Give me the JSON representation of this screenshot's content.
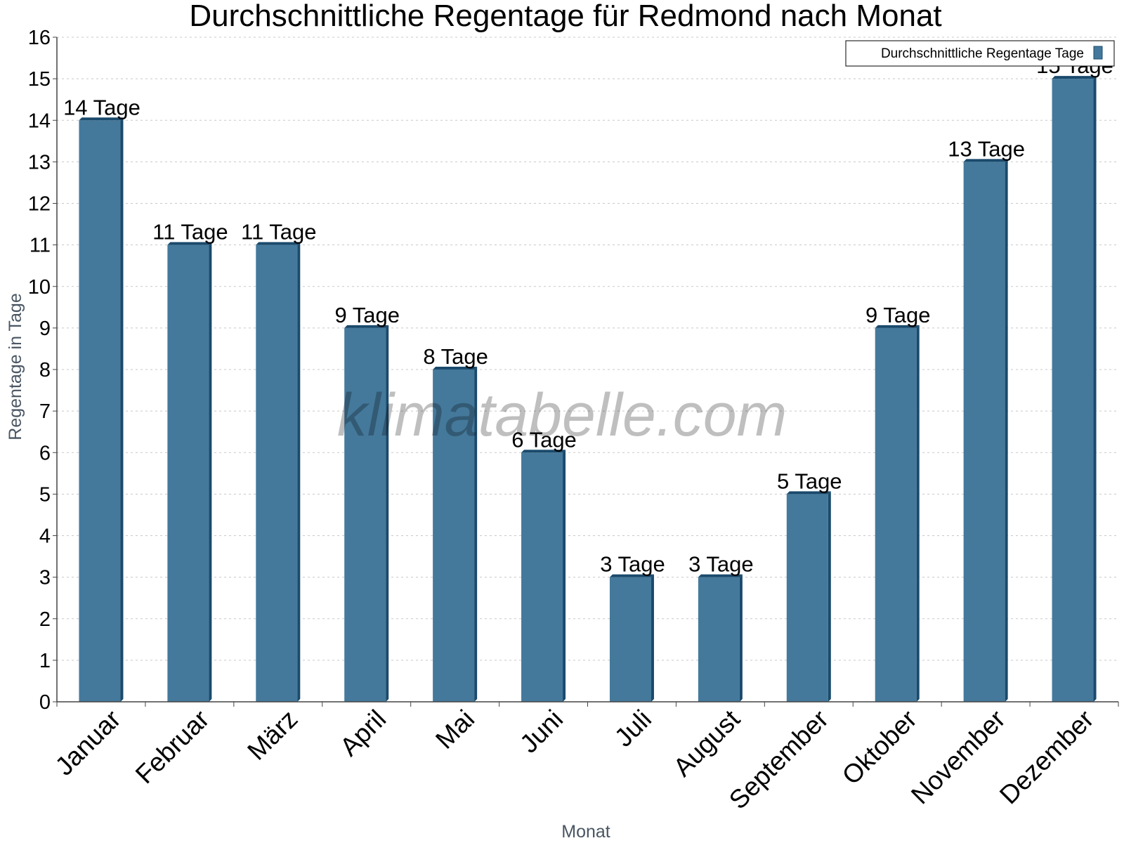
{
  "chart_data": {
    "type": "bar",
    "title": "Durchschnittliche Regentage für Redmond nach Monat",
    "xlabel": "Monat",
    "ylabel": "Regentage in Tage",
    "categories": [
      "Januar",
      "Februar",
      "März",
      "April",
      "Mai",
      "Juni",
      "Juli",
      "August",
      "September",
      "Oktober",
      "November",
      "Dezember"
    ],
    "series": [
      {
        "name": "Durchschnittliche Regentage Tage",
        "values": [
          14,
          11,
          11,
          9,
          8,
          6,
          3,
          3,
          5,
          9,
          13,
          15
        ],
        "labels": [
          "14 Tage",
          "11 Tage",
          "11 Tage",
          "9 Tage",
          "8 Tage",
          "6 Tage",
          "3 Tage",
          "3 Tage",
          "5 Tage",
          "9 Tage",
          "13 Tage",
          "15 Tage"
        ],
        "color": "#44799b",
        "edge_color": "#1a4a6c"
      }
    ],
    "ylim": [
      0,
      16
    ],
    "yticks": [
      "0",
      "1",
      "2",
      "3",
      "4",
      "5",
      "6",
      "7",
      "8",
      "9",
      "10",
      "11",
      "12",
      "13",
      "14",
      "15",
      "16"
    ],
    "grid": true,
    "legend_position": "top-right"
  },
  "watermark": "klimatabelle.com"
}
